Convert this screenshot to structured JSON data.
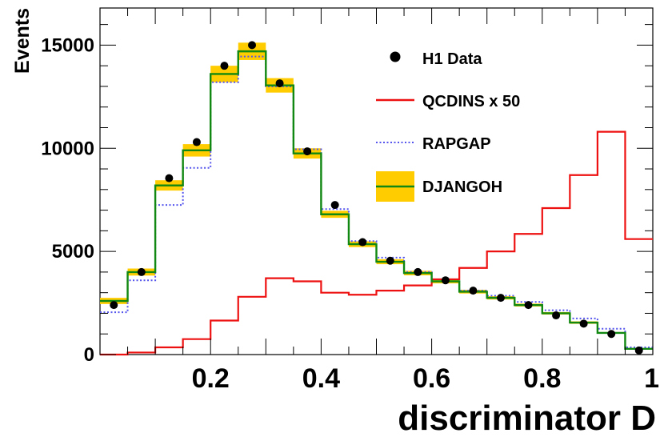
{
  "chart_data": {
    "type": "bar",
    "xlabel": "discriminator D",
    "ylabel": "Events",
    "xlim": [
      0,
      1
    ],
    "ylim": [
      0,
      16800
    ],
    "x_ticks": [
      "0.2",
      "0.4",
      "0.6",
      "0.8",
      "1"
    ],
    "y_ticks": [
      "0",
      "5000",
      "10000",
      "15000"
    ],
    "bin_edges": [
      0,
      0.05,
      0.1,
      0.15,
      0.2,
      0.25,
      0.3,
      0.35,
      0.4,
      0.45,
      0.5,
      0.55,
      0.6,
      0.65,
      0.7,
      0.75,
      0.8,
      0.85,
      0.9,
      0.95,
      1.0
    ],
    "legend_position": "top-right",
    "series": [
      {
        "name": "H1 Data",
        "style": "points",
        "color": "#000000",
        "x": [
          0.025,
          0.075,
          0.125,
          0.175,
          0.225,
          0.275,
          0.325,
          0.375,
          0.425,
          0.475,
          0.525,
          0.575,
          0.625,
          0.675,
          0.725,
          0.775,
          0.825,
          0.875,
          0.925,
          0.975
        ],
        "values": [
          2400,
          4000,
          8550,
          10300,
          14000,
          15000,
          13150,
          9850,
          7250,
          5450,
          4550,
          4000,
          3600,
          3100,
          2750,
          2400,
          1900,
          1500,
          1000,
          200
        ]
      },
      {
        "name": "QCDINS x 50",
        "style": "step",
        "color": "#ee1111",
        "values": [
          0,
          100,
          350,
          750,
          1650,
          2800,
          3700,
          3550,
          3000,
          2900,
          3100,
          3350,
          3650,
          4200,
          5000,
          5850,
          7100,
          8700,
          10800,
          5600
        ]
      },
      {
        "name": "RAPGAP",
        "style": "dotted-step",
        "color": "#5555ee",
        "values": [
          2050,
          3600,
          7250,
          9050,
          13200,
          14450,
          13000,
          9950,
          7050,
          5500,
          4700,
          4000,
          3550,
          3100,
          2850,
          2550,
          2150,
          1750,
          1250,
          350
        ]
      },
      {
        "name": "DJANGOH",
        "style": "step-band",
        "color": "#118811",
        "band_color": "#ffcc00",
        "values": [
          2600,
          4000,
          8200,
          9900,
          13600,
          14700,
          13050,
          9750,
          6800,
          5350,
          4500,
          3950,
          3550,
          3050,
          2750,
          2400,
          2000,
          1550,
          1050,
          280
        ],
        "errors": [
          150,
          170,
          250,
          300,
          400,
          420,
          350,
          250,
          170,
          140,
          120,
          110,
          100,
          90,
          80,
          70,
          60,
          60,
          40,
          20
        ]
      }
    ]
  }
}
